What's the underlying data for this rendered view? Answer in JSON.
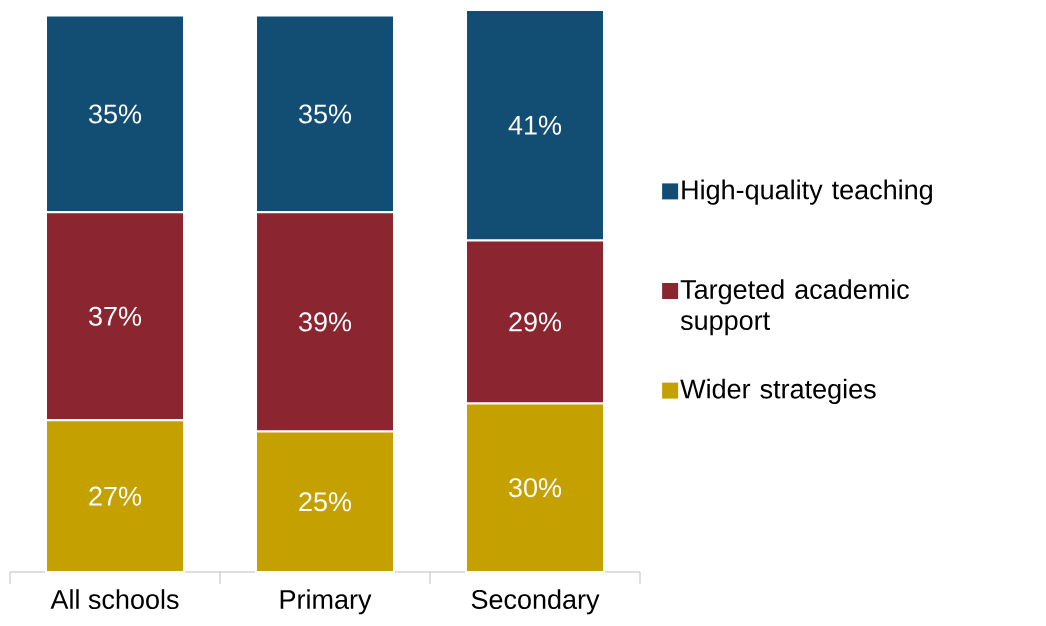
{
  "chart_data": {
    "type": "bar",
    "stacked": true,
    "categories": [
      "All schools",
      "Primary",
      "Secondary"
    ],
    "series": [
      {
        "name": "Wider strategies",
        "color": "#c4a000",
        "values": [
          27,
          25,
          30
        ],
        "value_labels": [
          "27%",
          "25%",
          "30%"
        ]
      },
      {
        "name": "Targeted academic support",
        "color": "#8b2530",
        "values": [
          37,
          39,
          29
        ],
        "value_labels": [
          "37%",
          "39%",
          "29%"
        ]
      },
      {
        "name": "High-quality teaching",
        "color": "#124e74",
        "values": [
          35,
          35,
          41
        ],
        "value_labels": [
          "35%",
          "35%",
          "41%"
        ]
      }
    ],
    "legend": "right"
  }
}
